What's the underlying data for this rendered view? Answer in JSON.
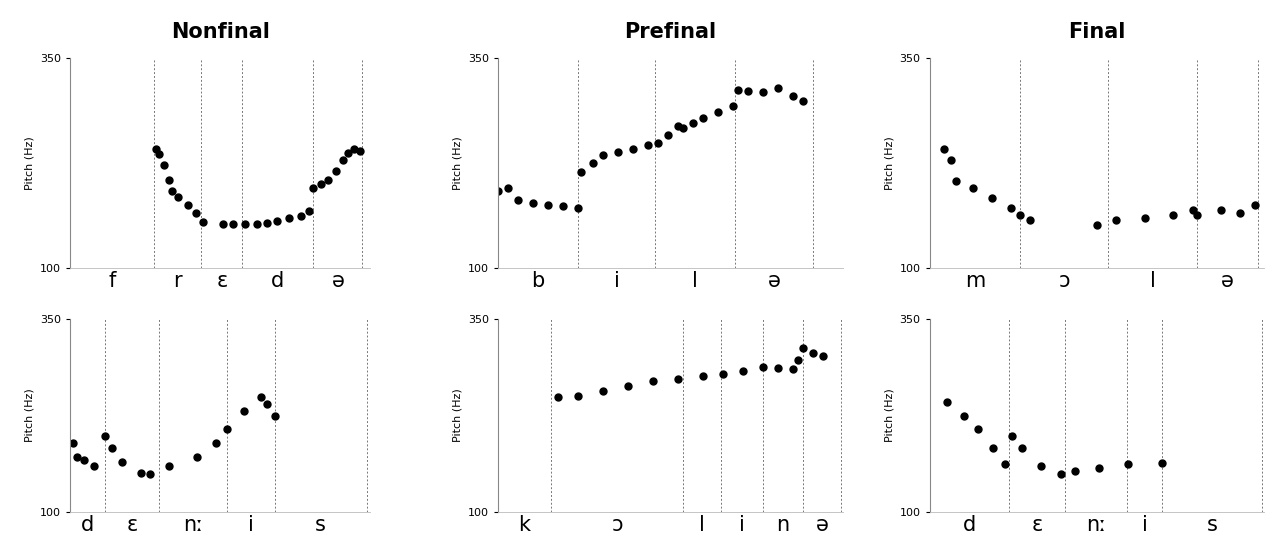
{
  "chart_data": [
    {
      "type": "scatter",
      "title": "Nonfinal",
      "y_label": "Pitch (Hz)",
      "ylim": [
        100,
        350
      ],
      "yticks": [
        100,
        350
      ],
      "xlim": [
        0,
        305
      ],
      "tick_labels": "y",
      "color": "#000000",
      "marker": "o",
      "segments": [
        "f",
        "r",
        "ɛ",
        "d",
        "ə"
      ],
      "boundaries": [
        85,
        133,
        175,
        247,
        297
      ],
      "x": [
        87,
        90,
        95,
        100,
        103,
        110,
        120,
        128,
        135,
        145,
        155,
        165,
        178,
        185,
        190,
        200,
        210,
        222,
        235,
        243,
        247,
        255,
        262,
        270,
        277,
        282,
        288,
        295
      ],
      "values": [
        242,
        235,
        222,
        205,
        192,
        185,
        175,
        165,
        155,
        null,
        153,
        153,
        153,
        null,
        152,
        154,
        156,
        159,
        162,
        168,
        195,
        200,
        205,
        215,
        228,
        237,
        241,
        239
      ]
    },
    {
      "type": "scatter",
      "title": "Prefinal",
      "y_label": "Pitch (Hz)",
      "ylim": [
        100,
        350
      ],
      "yticks": [
        100,
        350
      ],
      "xlim": [
        0,
        345
      ],
      "tick_labels": "y",
      "color": "#000000",
      "marker": "o",
      "segments": [
        "b",
        "i",
        "l",
        "ə"
      ],
      "boundaries": [
        80,
        157,
        237,
        315
      ],
      "x": [
        0,
        10,
        20,
        35,
        50,
        65,
        80,
        83,
        95,
        105,
        120,
        135,
        150,
        160,
        170,
        180,
        185,
        195,
        205,
        220,
        235,
        240,
        250,
        265,
        280,
        295,
        305
      ],
      "values": [
        192,
        195,
        181,
        177,
        175,
        174,
        171,
        214,
        225,
        234,
        238,
        242,
        246,
        249,
        258,
        269,
        266,
        272,
        278,
        286,
        293,
        311,
        310,
        309,
        314,
        305,
        299
      ]
    },
    {
      "type": "scatter",
      "title": "Final",
      "y_label": "Pitch (Hz)",
      "ylim": [
        100,
        350
      ],
      "yticks": [
        100,
        350
      ],
      "xlim": [
        0,
        350
      ],
      "tick_labels": "y",
      "color": "#000000",
      "marker": "o",
      "segments": [
        "m",
        "ɔ",
        "l",
        "ə"
      ],
      "boundaries": [
        95,
        187,
        280,
        343
      ],
      "x": [
        15,
        22,
        28,
        45,
        65,
        85,
        95,
        105,
        140,
        175,
        195,
        225,
        255,
        275,
        280,
        305,
        325,
        340
      ],
      "values": [
        242,
        228,
        204,
        195,
        183,
        171,
        163,
        157,
        null,
        151,
        157,
        160,
        163,
        169,
        163,
        169,
        166,
        175
      ]
    },
    {
      "type": "scatter",
      "title": null,
      "y_label": "Pitch (Hz)",
      "ylim": [
        100,
        350
      ],
      "yticks": [
        100,
        350
      ],
      "xlim": [
        0,
        320
      ],
      "tick_labels": "y",
      "color": "#000000",
      "marker": "o",
      "segments": [
        "d",
        "ɛ",
        "nː",
        "i",
        "s"
      ],
      "boundaries": [
        37,
        95,
        167,
        218,
        316
      ],
      "x": [
        3,
        7,
        15,
        25,
        37,
        45,
        55,
        75,
        85,
        105,
        135,
        155,
        167,
        185,
        203,
        210,
        218
      ],
      "values": [
        189,
        171,
        168,
        160,
        199,
        183,
        165,
        151,
        150,
        160,
        171,
        189,
        207,
        231,
        249,
        240,
        225
      ]
    },
    {
      "type": "scatter",
      "title": null,
      "y_label": "Pitch (Hz)",
      "ylim": [
        100,
        350
      ],
      "yticks": [
        100,
        350
      ],
      "xlim": [
        0,
        345
      ],
      "tick_labels": "y",
      "color": "#000000",
      "marker": "o",
      "segments": [
        "k",
        "ɔ",
        "l",
        "i",
        "n",
        "ə"
      ],
      "boundaries": [
        53,
        185,
        223,
        265,
        305,
        343
      ],
      "x": [
        60,
        80,
        105,
        130,
        155,
        180,
        205,
        225,
        245,
        265,
        280,
        295,
        300,
        305,
        315,
        325
      ],
      "values": [
        249,
        250,
        257,
        263,
        269,
        272,
        276,
        279,
        283,
        288,
        286,
        285,
        296,
        312,
        305,
        302
      ]
    },
    {
      "type": "scatter",
      "title": null,
      "y_label": "Pitch (Hz)",
      "ylim": [
        100,
        350
      ],
      "yticks": [
        100,
        350
      ],
      "xlim": [
        0,
        345
      ],
      "tick_labels": "y",
      "color": "#000000",
      "marker": "o",
      "segments": [
        "d",
        "ɛ",
        "nː",
        "i",
        "s"
      ],
      "boundaries": [
        82,
        140,
        203,
        240,
        343
      ],
      "x": [
        18,
        35,
        50,
        65,
        78,
        85,
        95,
        115,
        135,
        142,
        150,
        175,
        205,
        240
      ],
      "values": [
        243,
        225,
        207,
        183,
        162,
        198,
        183,
        160,
        150,
        null,
        154,
        157,
        162,
        164
      ]
    }
  ]
}
